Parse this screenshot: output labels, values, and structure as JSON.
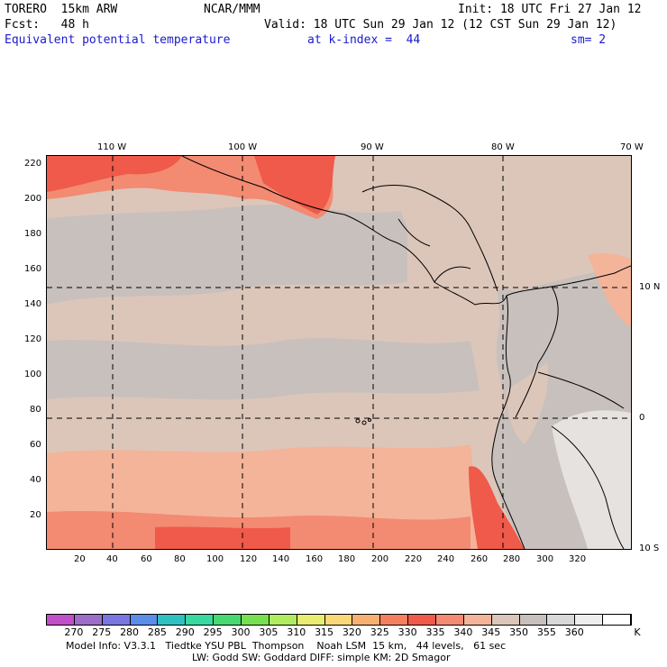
{
  "header": {
    "model": "TORERO  15km ARW",
    "center": "NCAR/MMM",
    "init": "Init: 18 UTC Fri 27 Jan 12",
    "fcst": "Fcst:   48 h",
    "valid": "Valid: 18 UTC Sun 29 Jan 12 (12 CST Sun 29 Jan 12)",
    "field": "Equivalent potential temperature",
    "level": "at k-index =  44",
    "smooth": "sm= 2"
  },
  "map": {
    "lon_labels_top": [
      "110 W",
      "100 W",
      "90 W",
      "80 W",
      "70 W"
    ],
    "lat_labels_right": [
      "10 N",
      "0",
      "10 S"
    ],
    "y_ticks": [
      "220",
      "200",
      "180",
      "160",
      "140",
      "120",
      "100",
      "80",
      "60",
      "40",
      "20"
    ],
    "x_ticks": [
      "20",
      "40",
      "60",
      "80",
      "100",
      "120",
      "140",
      "160",
      "180",
      "200",
      "220",
      "240",
      "260",
      "280",
      "300",
      "320"
    ],
    "colors": {
      "ocean_base": "#dcc6ba",
      "warm_band": "#f3b49a",
      "hot": "#ef5a4a",
      "very_hot": "#f08a6a",
      "cool_gray": "#c8c0bc",
      "light_gray": "#e6e2e0",
      "coast": "#000000",
      "grid": "#000000"
    }
  },
  "colorbar": {
    "labels": [
      "270",
      "275",
      "280",
      "285",
      "290",
      "295",
      "300",
      "305",
      "310",
      "315",
      "320",
      "325",
      "330",
      "335",
      "340",
      "345",
      "350",
      "355",
      "360"
    ],
    "unit": "K",
    "colors": [
      "#c050c8",
      "#9c6ec8",
      "#7a78e0",
      "#5a8ee8",
      "#30c0c0",
      "#38d8a0",
      "#48d870",
      "#78e050",
      "#b0ec60",
      "#e8ec70",
      "#f8d878",
      "#f6b070",
      "#f48060",
      "#ef5a4a",
      "#f38a72",
      "#f3b49a",
      "#dcc6ba",
      "#c8c0bc",
      "#d8d8d8",
      "#eeeeee",
      "#ffffff"
    ]
  },
  "footer": {
    "line1": "Model Info: V3.3.1   Tiedtke YSU PBL  Thompson    Noah LSM  15 km,   44 levels,   61 sec",
    "line2": "LW: Godd SW: Goddard DIFF: simple KM: 2D Smagor"
  }
}
